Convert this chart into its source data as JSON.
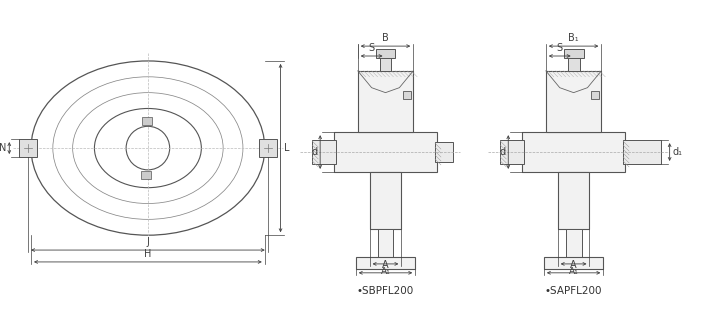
{
  "bg_color": "#ffffff",
  "line_color": "#404040",
  "dim_color": "#404040",
  "light_gray": "#aaaaaa",
  "mid_gray": "#888888",
  "hatch_color": "#666666",
  "title_sbpfl": "•SBPFL200",
  "title_sapfl": "•SAPFL200",
  "dim_labels_front": [
    "N",
    "L",
    "J",
    "H"
  ],
  "dim_labels_sbpfl": [
    "S",
    "B",
    "d",
    "A",
    "A₁"
  ],
  "dim_labels_sapfl": [
    "S",
    "B₁",
    "d",
    "d₁",
    "A",
    "A₁"
  ],
  "fig_width": 7.03,
  "fig_height": 3.12,
  "dpi": 100
}
